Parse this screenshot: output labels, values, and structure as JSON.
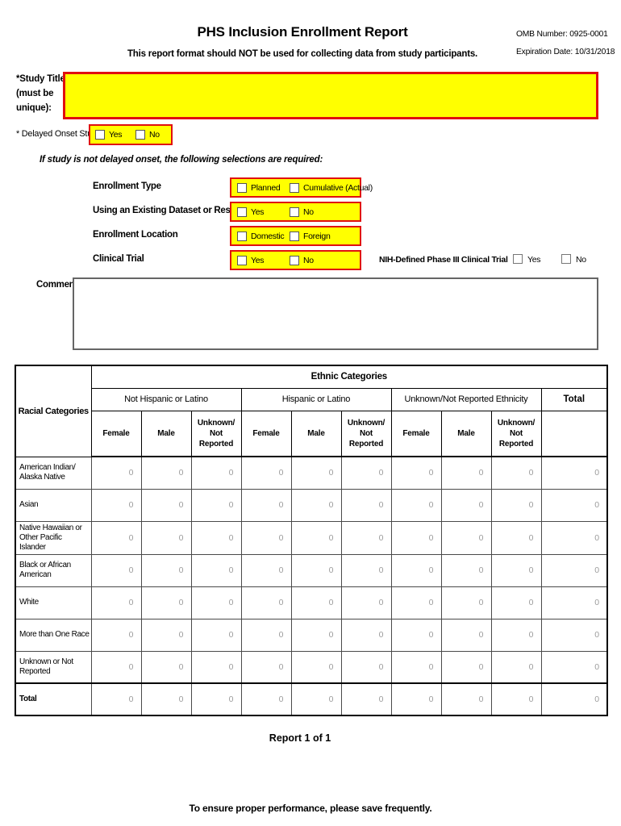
{
  "header": {
    "title": "PHS Inclusion Enrollment Report",
    "subtitle": "This report format should NOT be used for collecting data from study participants.",
    "omb_number": "OMB Number: 0925-0001",
    "expiration_date": "Expiration Date: 10/31/2018"
  },
  "study_title": {
    "label": "*Study Title\n(must be\nunique):",
    "value": ""
  },
  "delayed_onset": {
    "label": "* Delayed Onset Study?",
    "options": [
      "Yes",
      "No"
    ]
  },
  "instruction": "If study is not delayed onset, the following selections are required:",
  "selections": [
    {
      "label": "Enrollment Type",
      "options": [
        "Planned",
        "Cumulative (Actual)"
      ]
    },
    {
      "label": "Using an Existing Dataset or Resource",
      "options": [
        "Yes",
        "No"
      ]
    },
    {
      "label": "Enrollment Location",
      "options": [
        "Domestic",
        "Foreign"
      ]
    },
    {
      "label": "Clinical Trial",
      "options": [
        "Yes",
        "No"
      ]
    }
  ],
  "nih_phase3": {
    "label": "NIH-Defined Phase III Clinical Trial",
    "options": [
      "Yes",
      "No"
    ]
  },
  "comments": {
    "label": "Comments:",
    "value": ""
  },
  "table": {
    "corner": "Racial Categories",
    "top_header": "Ethnic Categories",
    "groups": [
      "Not Hispanic or Latino",
      "Hispanic or Latino",
      "Unknown/Not Reported Ethnicity"
    ],
    "total_header": "Total",
    "sub_headers": [
      "Female",
      "Male",
      "Unknown/\nNot\nReported"
    ],
    "rows": [
      {
        "label": "American Indian/\nAlaska Native",
        "values": [
          "0",
          "0",
          "0",
          "0",
          "0",
          "0",
          "0",
          "0",
          "0",
          "0"
        ]
      },
      {
        "label": "Asian",
        "values": [
          "0",
          "0",
          "0",
          "0",
          "0",
          "0",
          "0",
          "0",
          "0",
          "0"
        ]
      },
      {
        "label": "Native Hawaiian or\nOther Pacific Islander",
        "values": [
          "0",
          "0",
          "0",
          "0",
          "0",
          "0",
          "0",
          "0",
          "0",
          "0"
        ]
      },
      {
        "label": "Black or African\nAmerican",
        "values": [
          "0",
          "0",
          "0",
          "0",
          "0",
          "0",
          "0",
          "0",
          "0",
          "0"
        ]
      },
      {
        "label": "White",
        "values": [
          "0",
          "0",
          "0",
          "0",
          "0",
          "0",
          "0",
          "0",
          "0",
          "0"
        ]
      },
      {
        "label": "More than One Race",
        "values": [
          "0",
          "0",
          "0",
          "0",
          "0",
          "0",
          "0",
          "0",
          "0",
          "0"
        ]
      },
      {
        "label": "Unknown or Not\nReported",
        "values": [
          "0",
          "0",
          "0",
          "0",
          "0",
          "0",
          "0",
          "0",
          "0",
          "0"
        ]
      },
      {
        "label": "Total",
        "bold": true,
        "values": [
          "0",
          "0",
          "0",
          "0",
          "0",
          "0",
          "0",
          "0",
          "0",
          "0"
        ]
      }
    ]
  },
  "footer": {
    "report_page": "Report 1 of 1",
    "save_note": "To ensure proper performance, please save frequently."
  },
  "colors": {
    "highlight": "#FFFF00",
    "required_border": "#E01010",
    "value_gray": "#9C9C9C"
  }
}
